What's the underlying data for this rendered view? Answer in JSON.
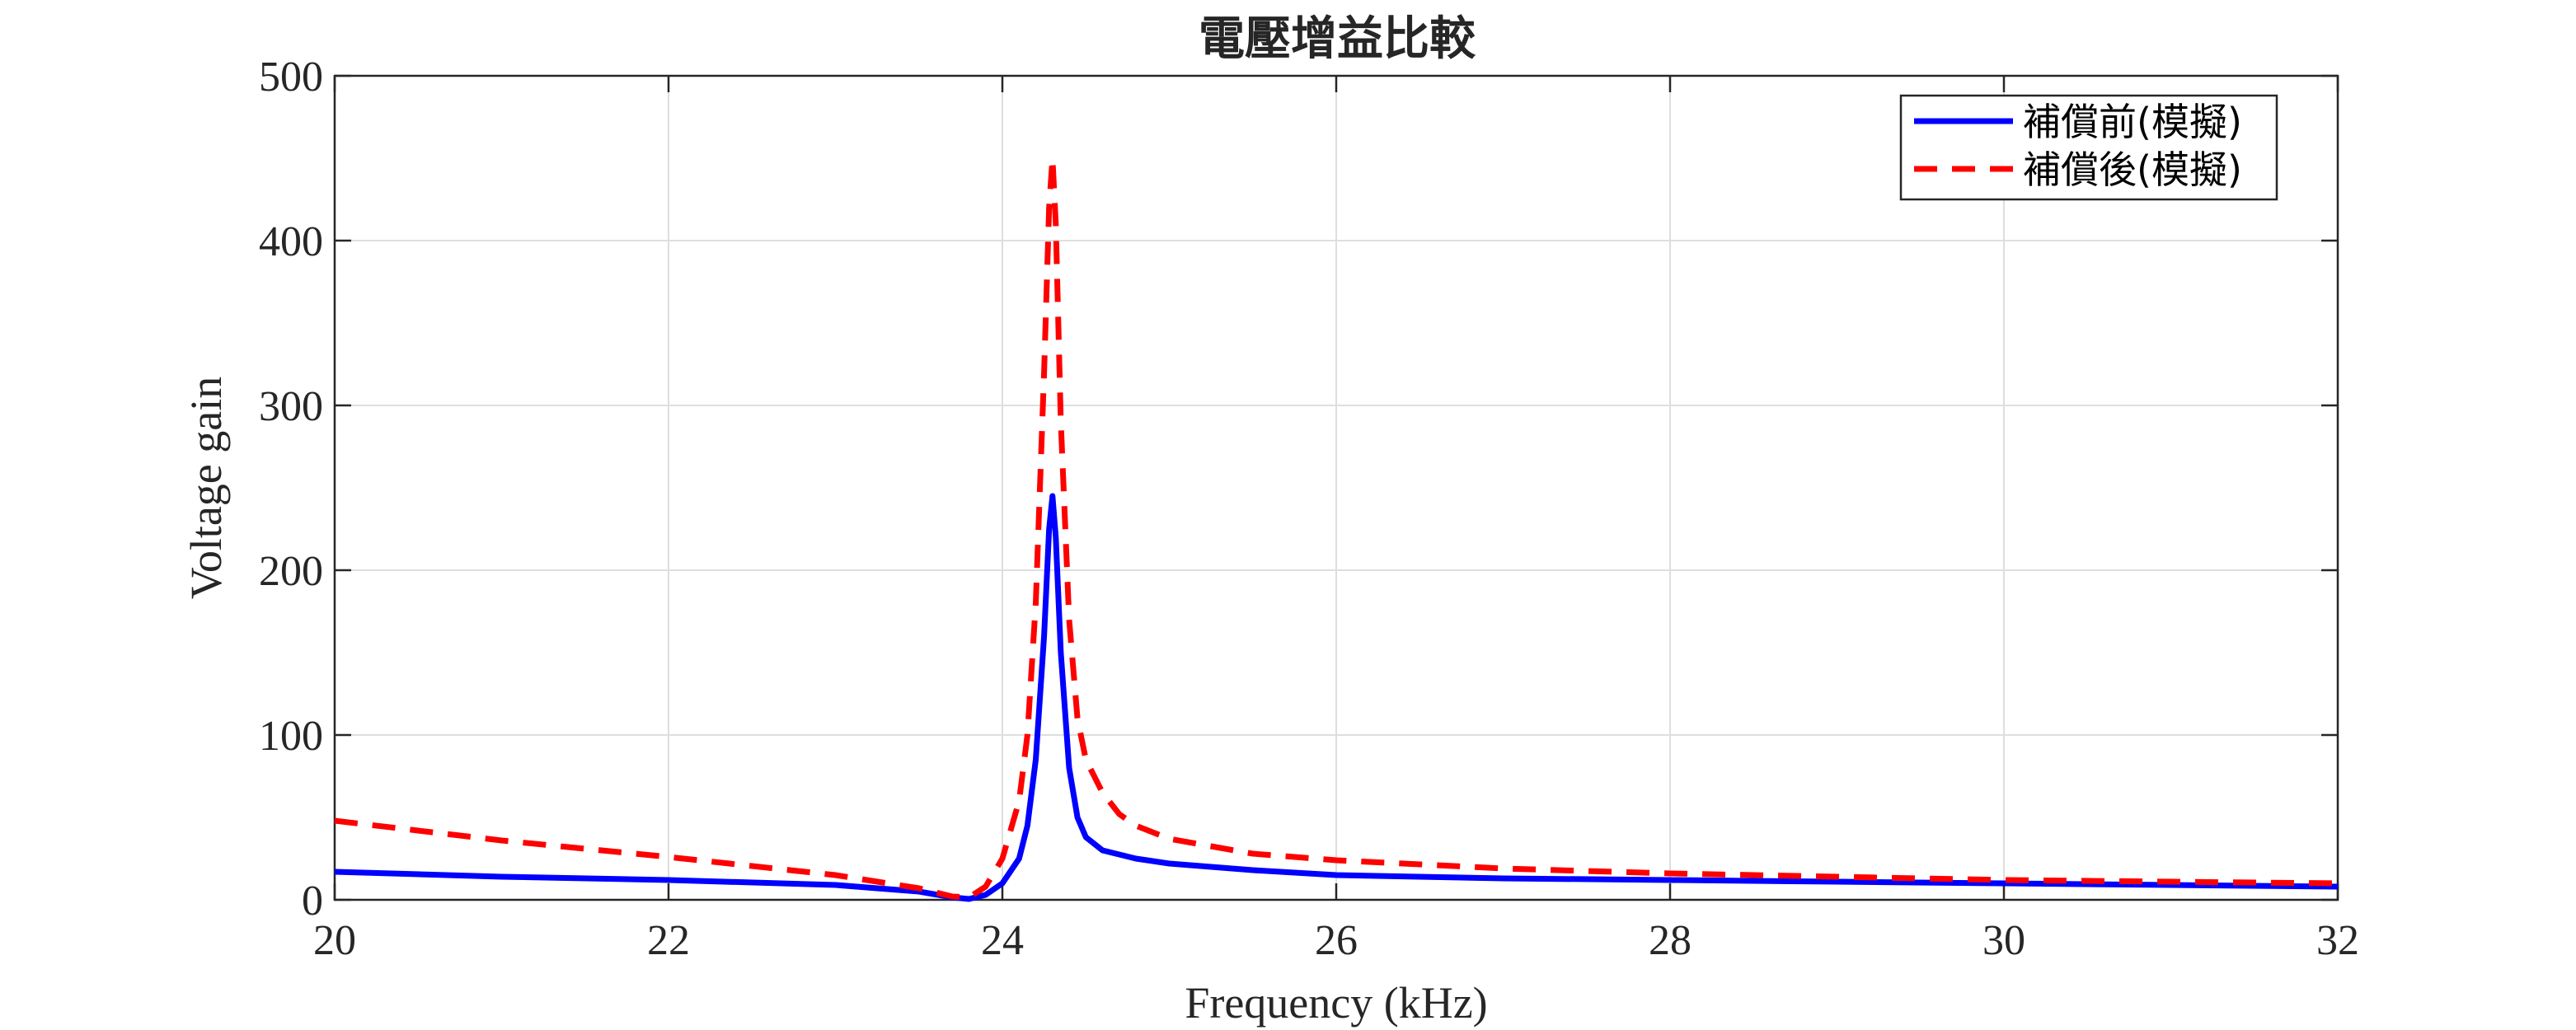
{
  "chart_data": {
    "type": "line",
    "title": "電壓增益比較",
    "xlabel": "Frequency (kHz)",
    "ylabel": "Voltage gain",
    "xlim": [
      20,
      32
    ],
    "ylim": [
      0,
      500
    ],
    "xticks": [
      "20",
      "22",
      "24",
      "26",
      "28",
      "30",
      "32"
    ],
    "yticks": [
      "0",
      "100",
      "200",
      "300",
      "400",
      "500"
    ],
    "grid": true,
    "legend_position": "top-right",
    "series": [
      {
        "name": "補償前(模擬)",
        "color": "#0000ff",
        "style": "solid",
        "x": [
          20,
          21,
          22,
          23,
          23.5,
          23.7,
          23.8,
          23.9,
          24.0,
          24.1,
          24.15,
          24.2,
          24.25,
          24.28,
          24.3,
          24.32,
          24.35,
          24.4,
          24.45,
          24.5,
          24.6,
          24.8,
          25.0,
          25.5,
          26,
          27,
          28,
          29,
          30,
          31,
          32
        ],
        "y": [
          17,
          14,
          12,
          9,
          5,
          1.5,
          0.5,
          3,
          10,
          25,
          45,
          85,
          160,
          225,
          245,
          220,
          150,
          80,
          50,
          38,
          30,
          25,
          22,
          18,
          15,
          13,
          12,
          11,
          10,
          9,
          8
        ]
      },
      {
        "name": "補償後(模擬)",
        "color": "#ff0000",
        "style": "dashed",
        "x": [
          20,
          21,
          22,
          23,
          23.5,
          23.7,
          23.8,
          23.9,
          24.0,
          24.1,
          24.15,
          24.2,
          24.25,
          24.28,
          24.3,
          24.32,
          24.35,
          24.4,
          24.45,
          24.5,
          24.6,
          24.7,
          24.8,
          25.0,
          25.5,
          26,
          27,
          28,
          29,
          30,
          31,
          32
        ],
        "y": [
          48,
          36,
          26,
          15,
          7,
          2,
          1.5,
          8,
          25,
          60,
          100,
          180,
          320,
          420,
          450,
          410,
          290,
          170,
          110,
          85,
          65,
          52,
          45,
          37,
          28,
          24,
          19,
          16,
          14,
          12,
          11,
          10
        ]
      }
    ]
  }
}
